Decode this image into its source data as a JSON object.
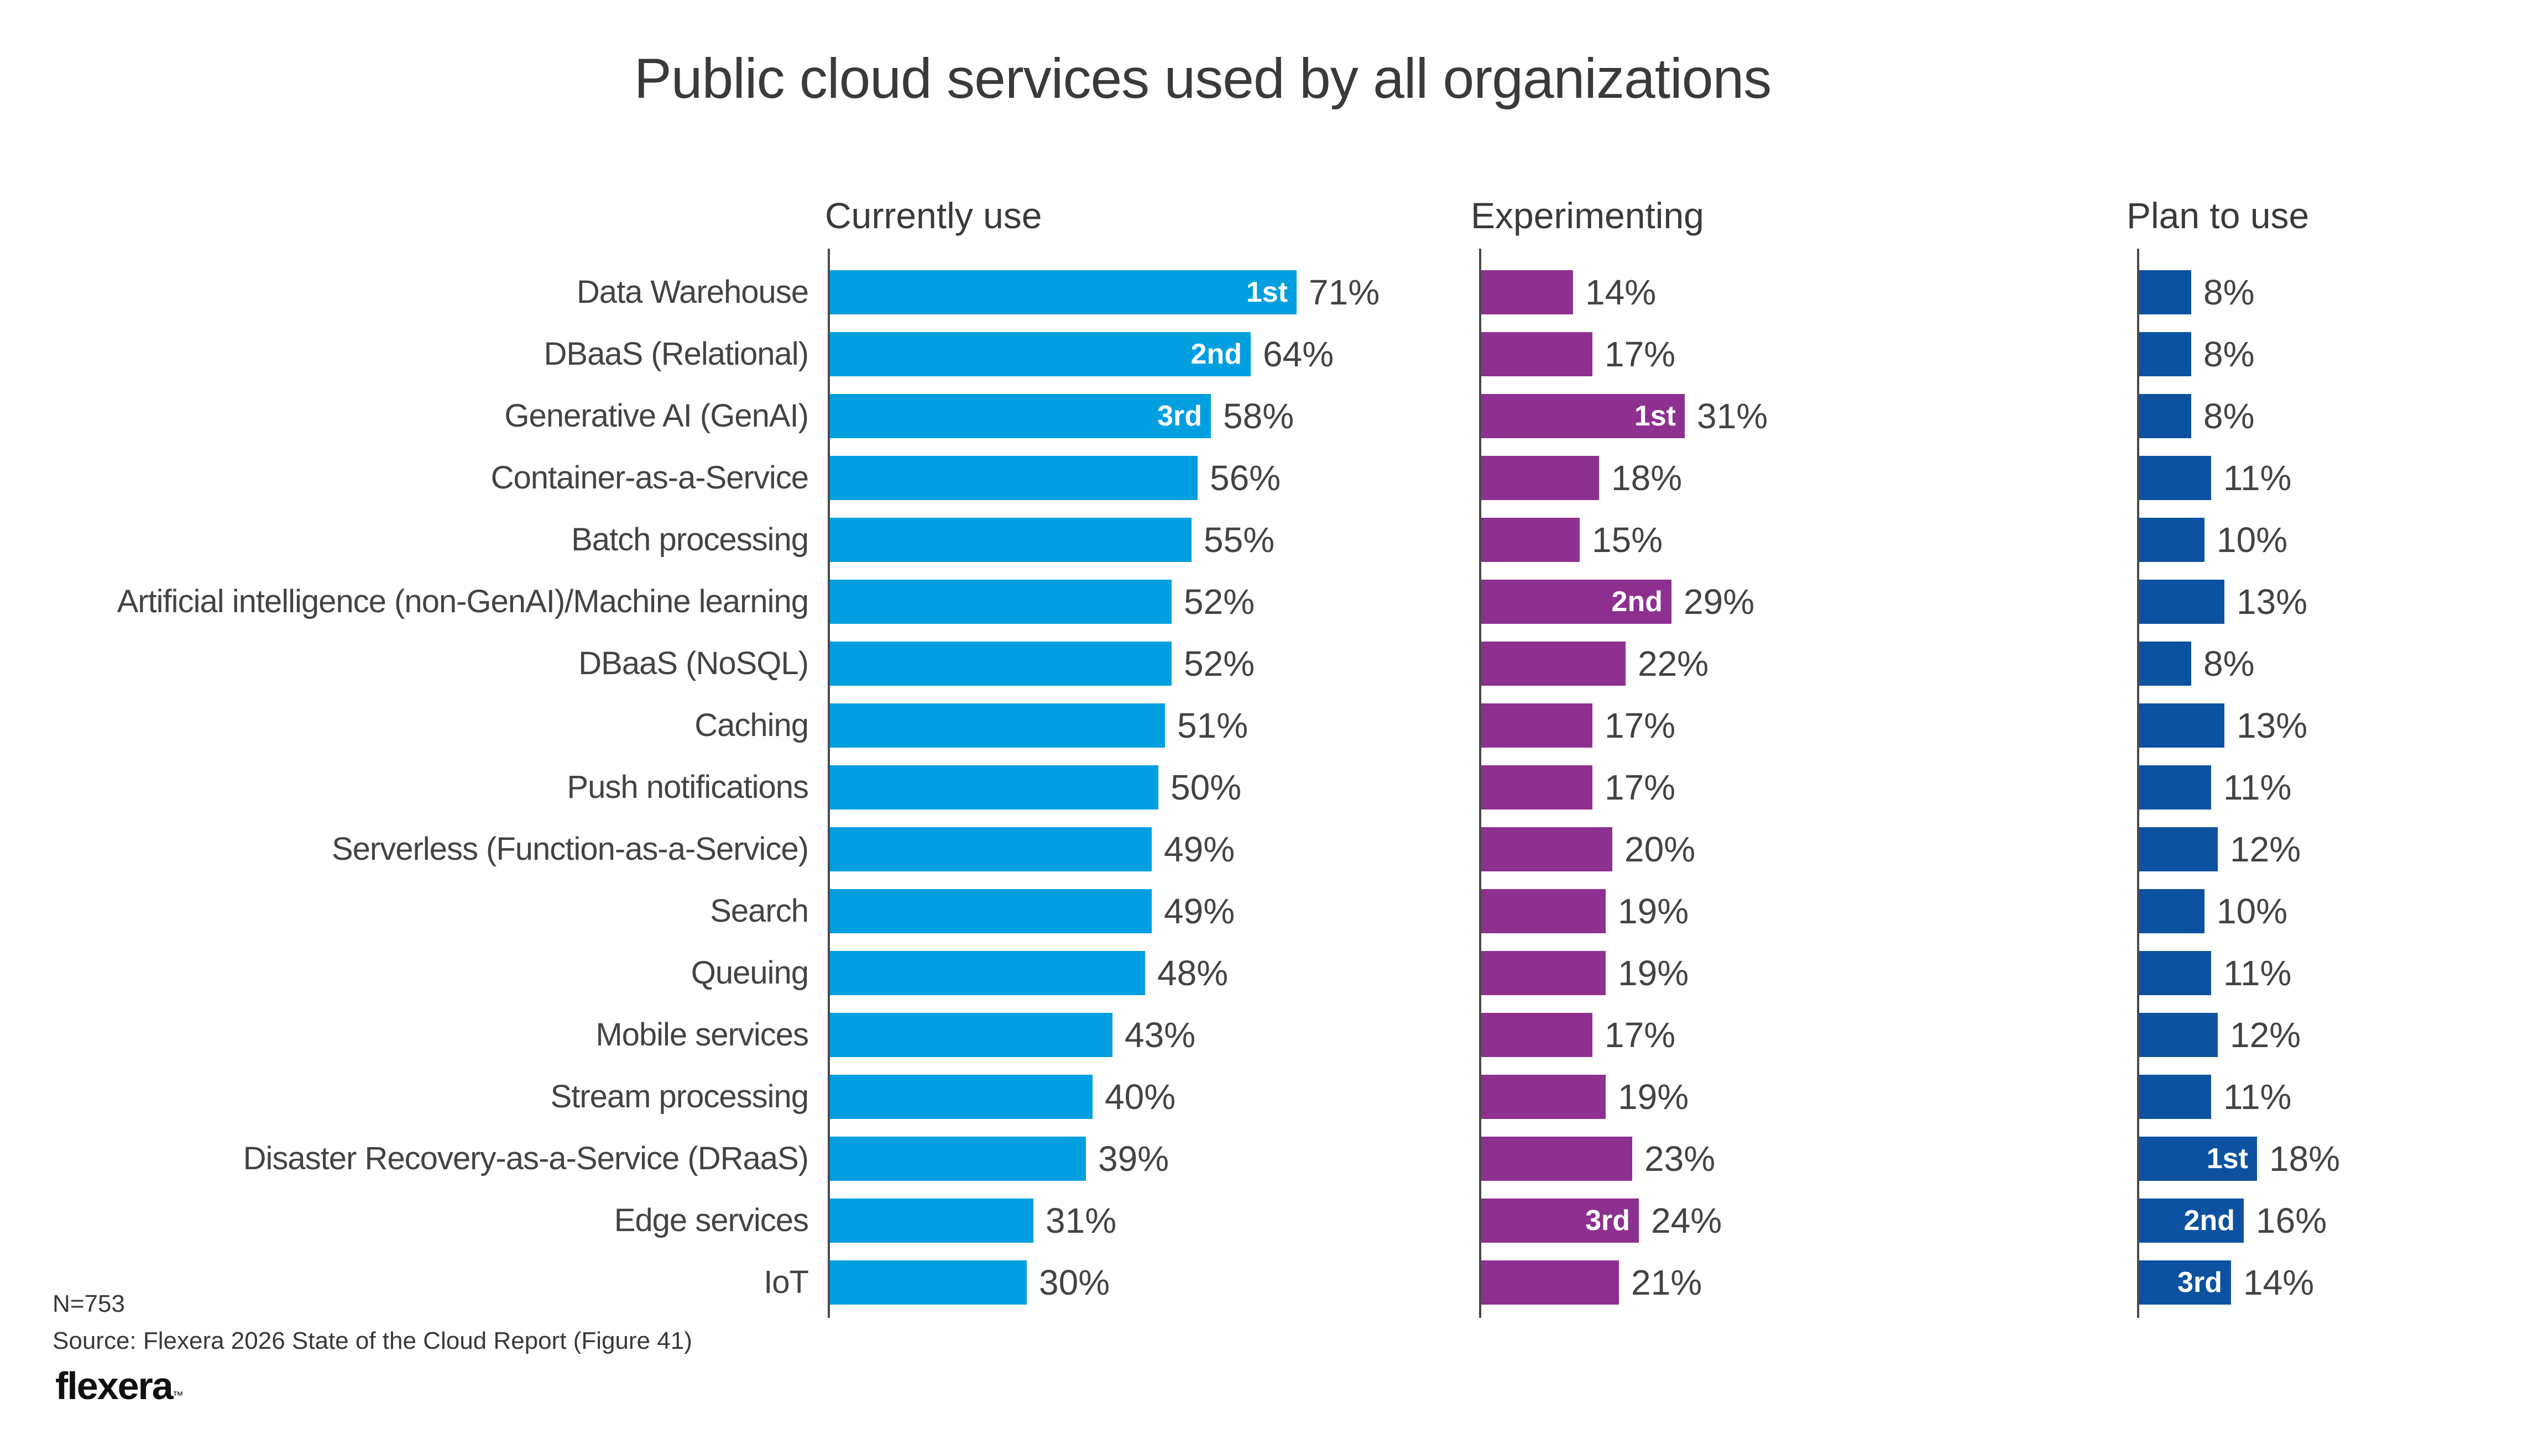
{
  "title": "Public cloud services used by all organizations",
  "footer": {
    "n": "N=753",
    "source": "Source: Flexera 2026 State of the Cloud Report (Figure 41)",
    "logo": "flexera",
    "logo_mark": "™"
  },
  "colors": {
    "currently_use": "#029FE0",
    "experimenting": "#8E3090",
    "plan_to_use": "#0D52A1",
    "text": "#434343",
    "axis": "#4A4A4A"
  },
  "chart_data": {
    "type": "bar",
    "orientation": "horizontal",
    "unit": "%",
    "title": "Public cloud services used by all organizations",
    "xlim": [
      0,
      100
    ],
    "grid": false,
    "legend_position": "column-headers-top",
    "categories": [
      "Data Warehouse",
      "DBaaS (Relational)",
      "Generative AI (GenAI)",
      "Container-as-a-Service",
      "Batch processing",
      "Artificial intelligence (non-GenAI)/Machine learning",
      "DBaaS (NoSQL)",
      "Caching",
      "Push notifications",
      "Serverless (Function-as-a-Service)",
      "Search",
      "Queuing",
      "Mobile services",
      "Stream processing",
      "Disaster Recovery-as-a-Service (DRaaS)",
      "Edge services",
      "IoT"
    ],
    "series": [
      {
        "name": "Currently use",
        "color": "#029FE0",
        "values": [
          71,
          64,
          58,
          56,
          55,
          52,
          52,
          51,
          50,
          49,
          49,
          48,
          43,
          40,
          39,
          31,
          30
        ],
        "ranks": {
          "0": "1st",
          "1": "2nd",
          "2": "3rd"
        }
      },
      {
        "name": "Experimenting",
        "color": "#8E3090",
        "values": [
          14,
          17,
          31,
          18,
          15,
          29,
          22,
          17,
          17,
          20,
          19,
          19,
          17,
          19,
          23,
          24,
          21
        ],
        "ranks": {
          "2": "1st",
          "5": "2nd",
          "15": "3rd"
        }
      },
      {
        "name": "Plan to use",
        "color": "#0D52A1",
        "values": [
          8,
          8,
          8,
          11,
          10,
          13,
          8,
          13,
          11,
          12,
          10,
          11,
          12,
          11,
          18,
          16,
          14
        ],
        "ranks": {
          "14": "1st",
          "15": "2nd",
          "16": "3rd"
        }
      }
    ]
  }
}
